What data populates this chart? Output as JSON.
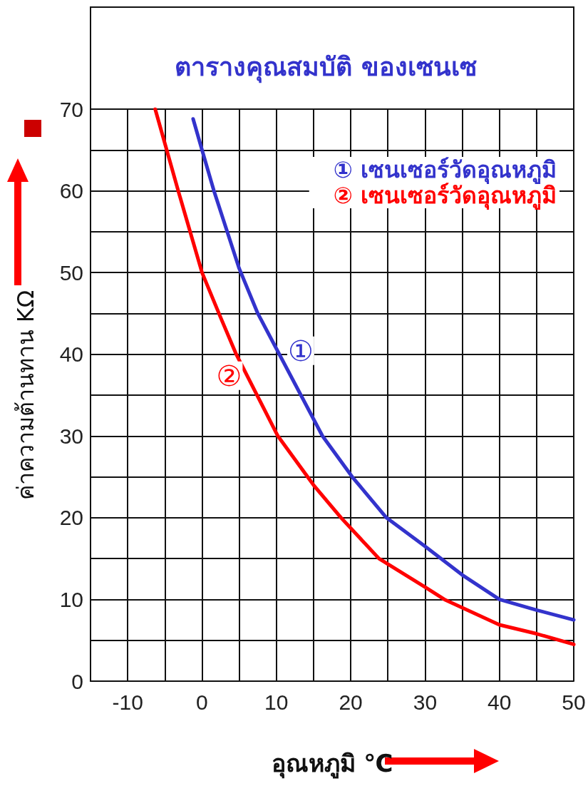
{
  "chart_data": {
    "type": "line",
    "title": "ตารางคุณสมบัติ ของเซนเซ",
    "xlabel": "อุณหภูมิ ℃",
    "ylabel": "ค่าความต้านทาน KΩ",
    "series": [
      {
        "name": "① เซนเซอร์วัดอุณหภูมิ",
        "color": "#3333cc",
        "x": [
          -1.2,
          0,
          1.6,
          5,
          7.5,
          10.4,
          16.2,
          20.2,
          24.8,
          30,
          35,
          40,
          45,
          50
        ],
        "values": [
          68.8,
          65,
          60,
          50.5,
          45,
          40,
          30,
          25,
          20,
          16.5,
          13,
          10,
          8.7,
          7.5
        ]
      },
      {
        "name": "② เซนเซอร์วัดอุณหภูมิ",
        "color": "#ff0000",
        "x": [
          -6.3,
          -3.2,
          0,
          2.5,
          4.6,
          10.2,
          15,
          18.7,
          23.8,
          30,
          32.6,
          40,
          45,
          50
        ],
        "values": [
          70,
          60,
          50,
          44.5,
          40,
          30,
          24,
          20,
          15,
          11.5,
          10,
          6.9,
          5.8,
          4.5
        ]
      }
    ],
    "annotations": [
      "①",
      "②"
    ],
    "xlim": [
      -15,
      50
    ],
    "xticks": [
      {
        "value": -15,
        "label": null
      },
      -10,
      {
        "value": -5,
        "label": null
      },
      0,
      {
        "value": 5,
        "label": null
      },
      10,
      {
        "value": 15,
        "label": null
      },
      20,
      {
        "value": 25,
        "label": null
      },
      30,
      {
        "value": 35,
        "label": null
      },
      40,
      {
        "value": 45,
        "label": null
      },
      50
    ],
    "ylim": [
      0,
      70
    ],
    "yticks": [
      0,
      {
        "value": 5,
        "label": null
      },
      10,
      {
        "value": 15,
        "label": null
      },
      20,
      {
        "value": 25,
        "label": null
      },
      30,
      {
        "value": 35,
        "label": null
      },
      40,
      {
        "value": 45,
        "label": null
      },
      50,
      {
        "value": 55,
        "label": null
      },
      60,
      {
        "value": 65,
        "label": null
      },
      70
    ],
    "grid": true,
    "legend": "top right",
    "marker": "none",
    "line_style": "solid"
  }
}
